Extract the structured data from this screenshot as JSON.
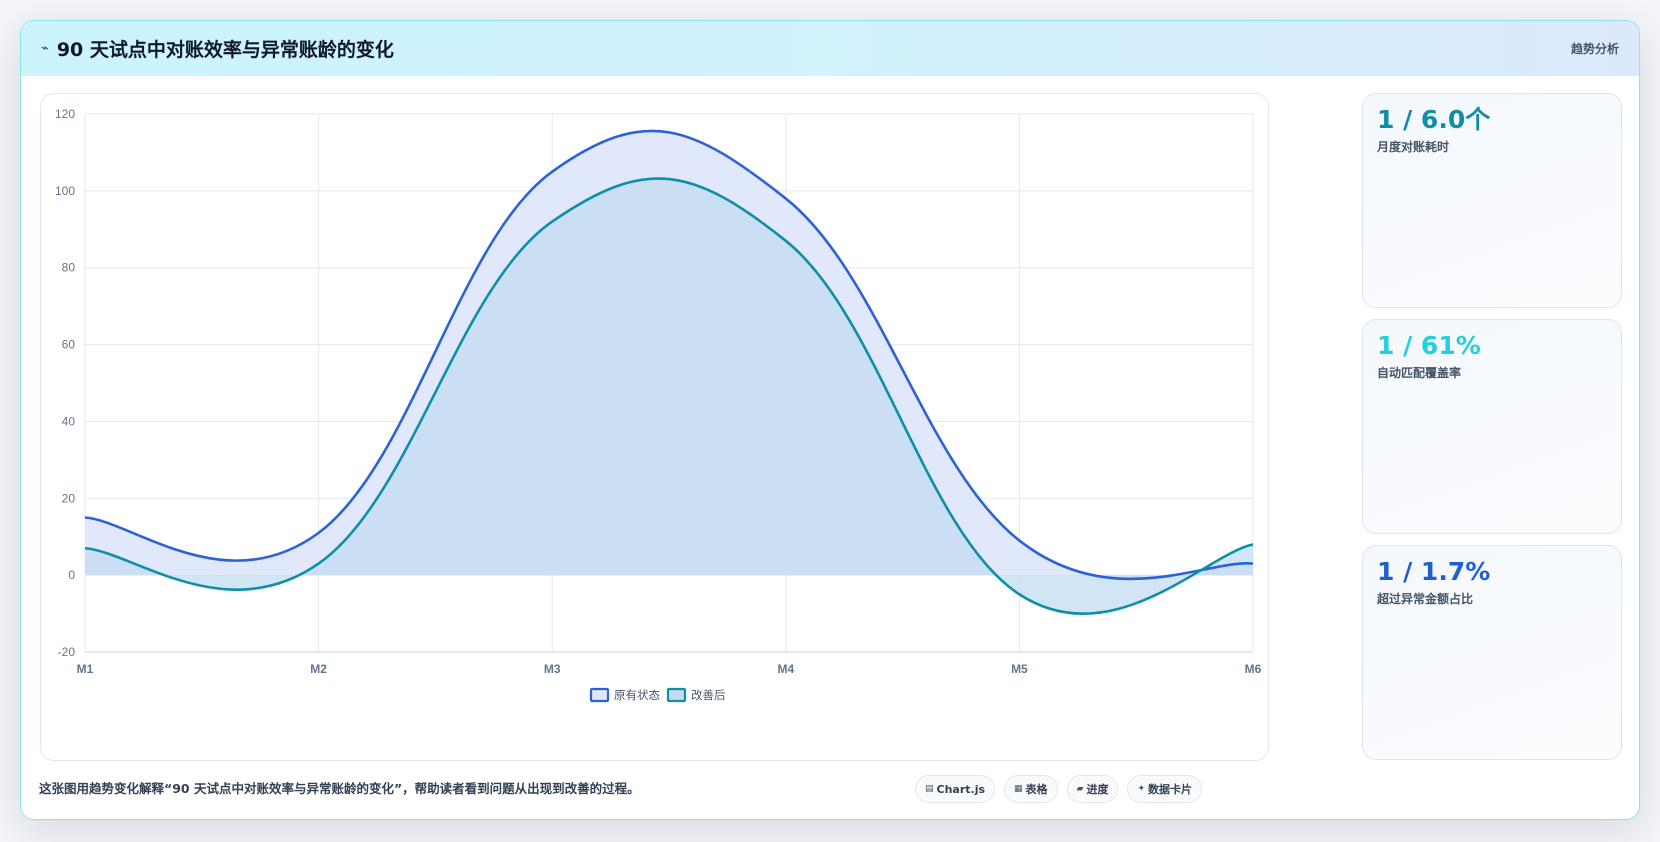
{
  "header": {
    "icon": "trend-icon",
    "title": "90 天试点中对账效率与异常账龄的变化",
    "tag": "趋势分析"
  },
  "chart_data": {
    "type": "area",
    "x": [
      "M1",
      "M2",
      "M3",
      "M4",
      "M5",
      "M6"
    ],
    "series": [
      {
        "name": "原有状态",
        "values": [
          15,
          11,
          105,
          98,
          9,
          3
        ],
        "color": "#2c62d8",
        "fill": "#dfe7fb"
      },
      {
        "name": "改善后",
        "values": [
          7,
          3,
          92,
          87,
          -5,
          8
        ],
        "color": "#0e8fa6",
        "fill": "#c3dcf1"
      }
    ],
    "ylim": [
      -20,
      120
    ],
    "yticks": [
      -20,
      0,
      20,
      40,
      60,
      80,
      100,
      120
    ],
    "grid": true,
    "legend": "bottom-center"
  },
  "stats": [
    {
      "value": "1 / 6.0个",
      "label": "月度对账耗时",
      "color": "#0e8fa6"
    },
    {
      "value": "1 / 61%",
      "label": "自动匹配覆盖率",
      "color": "#22cfe0"
    },
    {
      "value": "1 / 1.7%",
      "label": "超过异常金额占比",
      "color": "#1f5fcf"
    }
  ],
  "footer": {
    "caption": "这张图用趋势变化解释“90 天试点中对账效率与异常账龄的变化”，帮助读者看到问题从出现到改善的过程。",
    "chips": [
      {
        "icon": "chart-icon",
        "glyph": "▤",
        "label": "Chart.js"
      },
      {
        "icon": "table-icon",
        "glyph": "▦",
        "label": "表格"
      },
      {
        "icon": "progress-icon",
        "glyph": "▰",
        "label": "进度"
      },
      {
        "icon": "card-icon",
        "glyph": "✦",
        "label": "数据卡片"
      }
    ]
  }
}
